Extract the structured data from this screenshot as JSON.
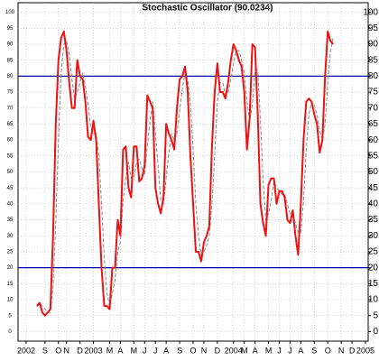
{
  "chart_data": {
    "type": "line",
    "title": "Stochastic Oscillator (90.0234)",
    "series": [
      {
        "color": "#ee1111",
        "dash": false,
        "values": [
          8,
          9,
          6,
          5,
          6,
          7,
          30,
          65,
          85,
          92,
          94,
          88,
          78,
          70,
          70,
          85,
          80,
          79,
          72,
          61,
          60,
          66,
          60,
          40,
          20,
          8,
          8,
          7,
          20,
          20,
          35,
          30,
          57,
          58,
          45,
          42,
          58,
          58,
          47,
          48,
          52,
          74,
          72,
          70,
          45,
          40,
          37,
          42,
          65,
          62,
          60,
          57,
          70,
          79,
          80,
          83,
          75,
          55,
          40,
          25,
          25,
          22,
          28,
          30,
          33,
          58,
          75,
          84,
          75,
          75,
          73,
          78,
          85,
          90,
          88,
          85,
          83,
          75,
          57,
          67,
          90,
          89,
          68,
          40,
          34,
          30,
          46,
          48,
          48,
          40,
          44,
          44,
          42,
          35,
          34,
          38,
          30,
          24,
          40,
          60,
          72,
          73,
          72,
          68,
          65,
          56,
          60,
          80,
          94,
          91,
          90
        ]
      },
      {
        "color": "#888888",
        "dash": true,
        "values": [
          8,
          9,
          8,
          7,
          6,
          6,
          14,
          34,
          60,
          81,
          90,
          91,
          87,
          79,
          73,
          75,
          78,
          81,
          77,
          71,
          64,
          62,
          62,
          55,
          40,
          23,
          12,
          8,
          12,
          16,
          25,
          28,
          41,
          48,
          53,
          48,
          48,
          53,
          54,
          51,
          49,
          58,
          66,
          72,
          62,
          52,
          41,
          40,
          48,
          56,
          62,
          60,
          62,
          69,
          76,
          81,
          79,
          71,
          57,
          40,
          30,
          24,
          25,
          27,
          30,
          40,
          55,
          72,
          78,
          78,
          74,
          75,
          79,
          84,
          88,
          88,
          85,
          81,
          72,
          66,
          71,
          82,
          82,
          66,
          47,
          35,
          37,
          41,
          47,
          45,
          44,
          43,
          43,
          40,
          37,
          36,
          34,
          31,
          31,
          41,
          57,
          68,
          72,
          71,
          68,
          63,
          60,
          65,
          78,
          88,
          92
        ]
      }
    ],
    "xlim": [
      -7,
      123
    ],
    "xticks": [
      {
        "value": -4,
        "label": "2002"
      },
      {
        "value": 3,
        "label": "S"
      },
      {
        "value": 8,
        "label": "O"
      },
      {
        "value": 11,
        "label": "N"
      },
      {
        "value": 16,
        "label": "D"
      },
      {
        "value": 21,
        "label": "2003"
      },
      {
        "value": 27,
        "label": "M"
      },
      {
        "value": 31,
        "label": "A"
      },
      {
        "value": 36,
        "label": "M"
      },
      {
        "value": 40,
        "label": "J"
      },
      {
        "value": 44,
        "label": "J"
      },
      {
        "value": 48,
        "label": "A"
      },
      {
        "value": 53,
        "label": "S"
      },
      {
        "value": 58,
        "label": "O"
      },
      {
        "value": 62,
        "label": "N"
      },
      {
        "value": 67,
        "label": "D"
      },
      {
        "value": 73,
        "label": "2004"
      },
      {
        "value": 77,
        "label": "M"
      },
      {
        "value": 81,
        "label": "A"
      },
      {
        "value": 86,
        "label": "M"
      },
      {
        "value": 90,
        "label": "J"
      },
      {
        "value": 94,
        "label": "J"
      },
      {
        "value": 98,
        "label": "A"
      },
      {
        "value": 103,
        "label": "S"
      },
      {
        "value": 108,
        "label": "O"
      },
      {
        "value": 113,
        "label": "N"
      },
      {
        "value": 117,
        "label": "D"
      },
      {
        "value": 122,
        "label": "2005"
      }
    ],
    "ylim": [
      -3,
      103
    ],
    "yticks": [
      0,
      5,
      10,
      15,
      20,
      25,
      30,
      35,
      40,
      45,
      50,
      55,
      60,
      65,
      70,
      75,
      80,
      85,
      90,
      95,
      100
    ],
    "hlines": [
      {
        "value": 20,
        "color": "#0000aa"
      },
      {
        "value": 80,
        "color": "#0000aa"
      }
    ],
    "grid": true
  }
}
